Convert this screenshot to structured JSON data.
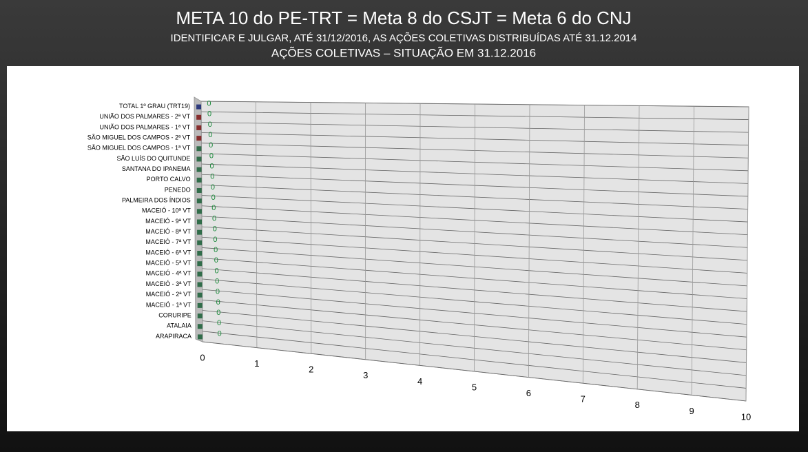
{
  "chart_data": {
    "type": "bar",
    "orientation": "horizontal",
    "title": "META 10 do PE-TRT = Meta 8 do CSJT = Meta 6 do CNJ",
    "subtitle": [
      "IDENTIFICAR E JULGAR, ATÉ 31/12/2016, AS AÇÕES COLETIVAS DISTRIBUÍDAS ATÉ 31.12.2014",
      "AÇÕES COLETIVAS – SITUAÇÃO EM 31.12.2016"
    ],
    "categories": [
      "TOTAL 1º GRAU (TRT19)",
      "UNIÃO DOS PALMARES - 2ª VT",
      "UNIÃO DOS PALMARES - 1ª VT",
      "SÃO MIGUEL DOS CAMPOS - 2ª VT",
      "SÃO MIGUEL DOS CAMPOS - 1ª VT",
      "SÃO LUÍS DO QUITUNDE",
      "SANTANA DO IPANEMA",
      "PORTO CALVO",
      "PENEDO",
      "PALMEIRA DOS ÍNDIOS",
      "MACEIÓ - 10ª VT",
      "MACEIÓ - 9ª VT",
      "MACEIÓ - 8ª VT",
      "MACEIÓ - 7ª VT",
      "MACEIÓ - 6ª VT",
      "MACEIÓ - 5ª VT",
      "MACEIÓ - 4ª VT",
      "MACEIÓ - 3ª VT",
      "MACEIÓ - 2ª VT",
      "MACEIÓ - 1ª VT",
      "CORURIPE",
      "ATALAIA",
      "ARAPIRACA"
    ],
    "values": [
      0,
      0,
      0,
      0,
      0,
      0,
      0,
      0,
      0,
      0,
      0,
      0,
      0,
      0,
      0,
      0,
      0,
      0,
      0,
      0,
      0,
      0,
      0
    ],
    "colors": [
      "#0a1a6e",
      "#7a0a0a",
      "#7a0a0a",
      "#7a0a0a",
      "#0f5a2e",
      "#0f5a2e",
      "#0f5a2e",
      "#0f5a2e",
      "#0f5a2e",
      "#0f5a2e",
      "#0f5a2e",
      "#0f5a2e",
      "#0f5a2e",
      "#0f5a2e",
      "#0f5a2e",
      "#0f5a2e",
      "#0f5a2e",
      "#0f5a2e",
      "#0f5a2e",
      "#0f5a2e",
      "#0f5a2e",
      "#0f5a2e",
      "#0f5a2e"
    ],
    "xlim": [
      0,
      10
    ],
    "xticks": [
      0,
      1,
      2,
      3,
      4,
      5,
      6,
      7,
      8,
      9,
      10
    ],
    "grid": true
  }
}
